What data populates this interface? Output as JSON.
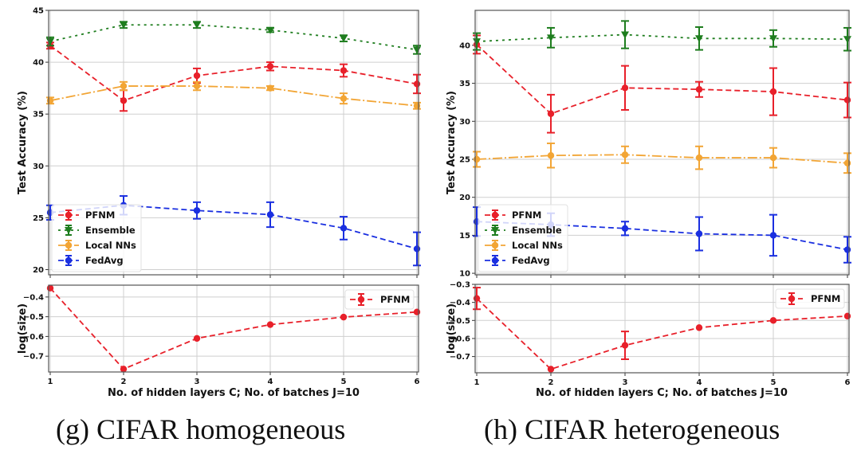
{
  "captions": [
    "(g) CIFAR homogeneous",
    "(h) CIFAR heterogeneous"
  ],
  "colors": {
    "PFNM": "#e8202a",
    "Ensemble": "#1e7d1e",
    "Local NNs": "#f2a535",
    "FedAvg": "#1a2fe0",
    "grid": "#cfcfcf"
  },
  "chart_data": [
    {
      "type": "line",
      "panel": "g",
      "title": "(g) CIFAR homogeneous",
      "xlabel": "No. of hidden layers C; No. of batches J=10",
      "x": [
        1,
        2,
        3,
        4,
        5,
        6
      ],
      "xticks": [
        "1",
        "2",
        "3",
        "4",
        "5",
        "6"
      ],
      "grid": true,
      "top": {
        "ylabel": "Test Accuracy (%)",
        "ylim": [
          19.5,
          45
        ],
        "yticks": [
          20,
          25,
          30,
          35,
          40,
          45
        ],
        "legend": "lower-left",
        "series": [
          {
            "name": "PFNM",
            "marker": "circle",
            "linestyle": "dashed",
            "values": [
              41.6,
              36.3,
              38.7,
              39.6,
              39.2,
              37.9
            ],
            "err": [
              0.3,
              1.0,
              0.7,
              0.4,
              0.6,
              0.9
            ]
          },
          {
            "name": "Ensemble",
            "marker": "triangle-down",
            "linestyle": "dotted",
            "values": [
              42.0,
              43.6,
              43.6,
              43.1,
              42.3,
              41.2
            ],
            "err": [
              0.4,
              0.3,
              0.3,
              0.2,
              0.3,
              0.4
            ]
          },
          {
            "name": "Local NNs",
            "marker": "circle",
            "linestyle": "dashdot",
            "values": [
              36.3,
              37.7,
              37.7,
              37.5,
              36.5,
              35.8
            ],
            "err": [
              0.3,
              0.4,
              0.4,
              0.2,
              0.5,
              0.3
            ]
          },
          {
            "name": "FedAvg",
            "marker": "circle",
            "linestyle": "dashed",
            "values": [
              25.5,
              26.2,
              25.7,
              25.3,
              24.0,
              22.0
            ],
            "err": [
              0.7,
              0.9,
              0.8,
              1.2,
              1.1,
              1.6
            ]
          }
        ]
      },
      "bottom": {
        "ylabel": "log(size)",
        "ylim": [
          -0.78,
          -0.34
        ],
        "yticks": [
          -0.4,
          -0.5,
          -0.6,
          -0.7
        ],
        "legend": "upper-right",
        "series": [
          {
            "name": "PFNM",
            "marker": "circle",
            "linestyle": "dashed",
            "values": [
              -0.355,
              -0.765,
              -0.61,
              -0.54,
              -0.502,
              -0.476
            ],
            "err": [
              0,
              0,
              0,
              0,
              0,
              0
            ]
          }
        ]
      }
    },
    {
      "type": "line",
      "panel": "h",
      "title": "(h) CIFAR heterogeneous",
      "xlabel": "No. of hidden layers C; No. of batches J=10",
      "x": [
        1,
        2,
        3,
        4,
        5,
        6
      ],
      "xticks": [
        "1",
        "2",
        "3",
        "4",
        "5",
        "6"
      ],
      "grid": true,
      "top": {
        "ylabel": "Test Accuracy (%)",
        "ylim": [
          9.8,
          44.6
        ],
        "yticks": [
          10,
          15,
          20,
          25,
          30,
          35,
          40
        ],
        "legend": "lower-left",
        "series": [
          {
            "name": "PFNM",
            "marker": "circle",
            "linestyle": "dashed",
            "values": [
              40.1,
              31.0,
              34.4,
              34.2,
              33.9,
              32.8
            ],
            "err": [
              1.2,
              2.5,
              2.9,
              1.0,
              3.1,
              2.3
            ]
          },
          {
            "name": "Ensemble",
            "marker": "triangle-down",
            "linestyle": "dotted",
            "values": [
              40.5,
              41.0,
              41.4,
              40.9,
              40.9,
              40.8
            ],
            "err": [
              1.1,
              1.3,
              1.8,
              1.5,
              1.1,
              1.5
            ]
          },
          {
            "name": "Local NNs",
            "marker": "circle",
            "linestyle": "dashdot",
            "values": [
              25.0,
              25.5,
              25.6,
              25.2,
              25.2,
              24.5
            ],
            "err": [
              1.0,
              1.6,
              1.1,
              1.5,
              1.3,
              1.3
            ]
          },
          {
            "name": "FedAvg",
            "marker": "circle",
            "linestyle": "dashed",
            "values": [
              16.8,
              16.4,
              15.9,
              15.2,
              15.0,
              13.1
            ],
            "err": [
              1.9,
              1.5,
              0.9,
              2.2,
              2.7,
              1.7
            ]
          }
        ]
      },
      "bottom": {
        "ylabel": "log(size)",
        "ylim": [
          -0.79,
          -0.3
        ],
        "yticks": [
          -0.3,
          -0.4,
          -0.5,
          -0.6,
          -0.7
        ],
        "legend": "upper-right",
        "series": [
          {
            "name": "PFNM",
            "marker": "circle",
            "linestyle": "dashed",
            "values": [
              -0.378,
              -0.77,
              -0.638,
              -0.54,
              -0.5,
              -0.476
            ],
            "err": [
              0.06,
              0,
              0.077,
              0,
              0,
              0
            ]
          }
        ]
      }
    }
  ]
}
